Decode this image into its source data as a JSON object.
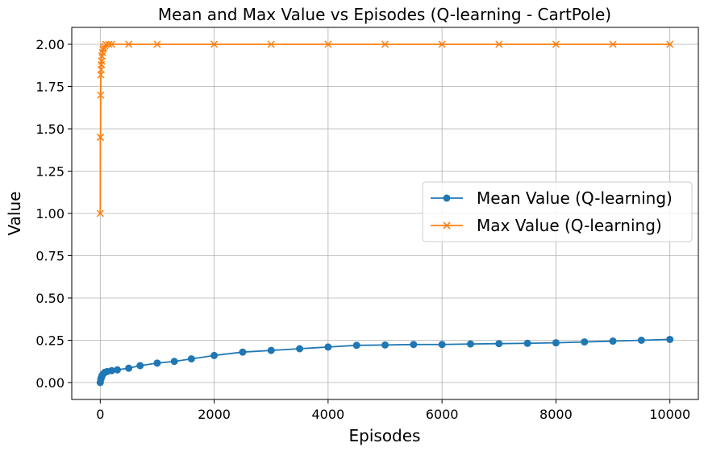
{
  "chart_data": {
    "type": "line",
    "title": "Mean and Max Value vs Episodes (Q-learning - CartPole)",
    "xlabel": "Episodes",
    "ylabel": "Value",
    "xlim": [
      -500,
      10500
    ],
    "ylim": [
      -0.1,
      2.1
    ],
    "xticks": [
      0,
      2000,
      4000,
      6000,
      8000,
      10000
    ],
    "xtick_labels": [
      "0",
      "2000",
      "4000",
      "6000",
      "8000",
      "10000"
    ],
    "yticks": [
      0.0,
      0.25,
      0.5,
      0.75,
      1.0,
      1.25,
      1.5,
      1.75,
      2.0
    ],
    "ytick_labels": [
      "0.00",
      "0.25",
      "0.50",
      "0.75",
      "1.00",
      "1.25",
      "1.50",
      "1.75",
      "2.00"
    ],
    "grid": true,
    "legend_position": "center-right",
    "series": [
      {
        "name": "Mean Value (Q-learning)",
        "color": "#1f77b4",
        "marker": "circle",
        "x": [
          0,
          10,
          20,
          30,
          50,
          80,
          120,
          200,
          300,
          500,
          700,
          1000,
          1300,
          1600,
          2000,
          2500,
          3000,
          3500,
          4000,
          4500,
          5000,
          5500,
          6000,
          6500,
          7000,
          7500,
          8000,
          8500,
          9000,
          9500,
          10000
        ],
        "y": [
          0.0,
          0.02,
          0.03,
          0.04,
          0.05,
          0.06,
          0.065,
          0.07,
          0.075,
          0.085,
          0.1,
          0.115,
          0.125,
          0.14,
          0.16,
          0.18,
          0.19,
          0.2,
          0.21,
          0.22,
          0.222,
          0.225,
          0.225,
          0.228,
          0.23,
          0.232,
          0.235,
          0.24,
          0.245,
          0.25,
          0.255
        ]
      },
      {
        "name": "Max Value (Q-learning)",
        "color": "#ff7f0e",
        "marker": "x",
        "x": [
          0,
          2,
          5,
          8,
          10,
          15,
          20,
          25,
          30,
          40,
          50,
          60,
          80,
          100,
          150,
          200,
          500,
          1000,
          2000,
          3000,
          4000,
          5000,
          6000,
          7000,
          8000,
          9000,
          10000
        ],
        "y": [
          1.0,
          1.45,
          1.45,
          1.7,
          1.82,
          1.85,
          1.88,
          1.9,
          1.93,
          1.95,
          1.97,
          1.98,
          1.99,
          2.0,
          2.0,
          2.0,
          2.0,
          2.0,
          2.0,
          2.0,
          2.0,
          2.0,
          2.0,
          2.0,
          2.0,
          2.0,
          2.0
        ]
      }
    ]
  }
}
